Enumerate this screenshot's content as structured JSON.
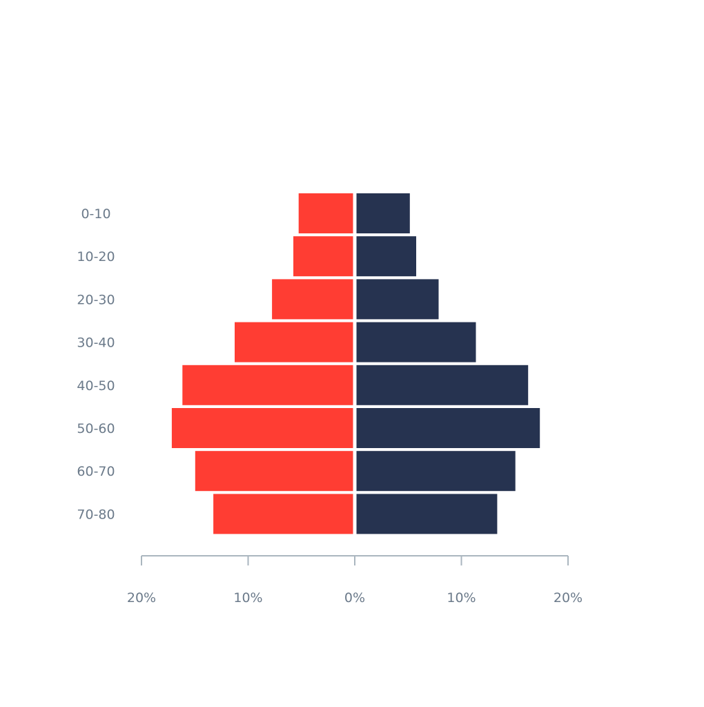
{
  "chart_data": {
    "type": "bar",
    "orientation": "horizontal-diverging",
    "categories": [
      "0-10",
      "10-20",
      "20-30",
      "30-40",
      "40-50",
      "50-60",
      "60-70",
      "70-80"
    ],
    "series": [
      {
        "side": "left",
        "color": "#ff3d33",
        "values": [
          5.1,
          5.6,
          7.6,
          11.1,
          16.0,
          17.0,
          14.8,
          13.1
        ]
      },
      {
        "side": "right",
        "color": "#263350",
        "values": [
          5.0,
          5.6,
          7.7,
          11.2,
          16.1,
          17.2,
          14.9,
          13.2
        ]
      }
    ],
    "xlim": [
      -20,
      20
    ],
    "x_ticks": [
      -20,
      -10,
      0,
      10,
      20
    ],
    "x_tick_labels": [
      "20%",
      "10%",
      "0%",
      "10%",
      "20%"
    ],
    "title": "",
    "xlabel": "",
    "ylabel": "",
    "grid": false,
    "axis_color": "#aab6bf"
  }
}
